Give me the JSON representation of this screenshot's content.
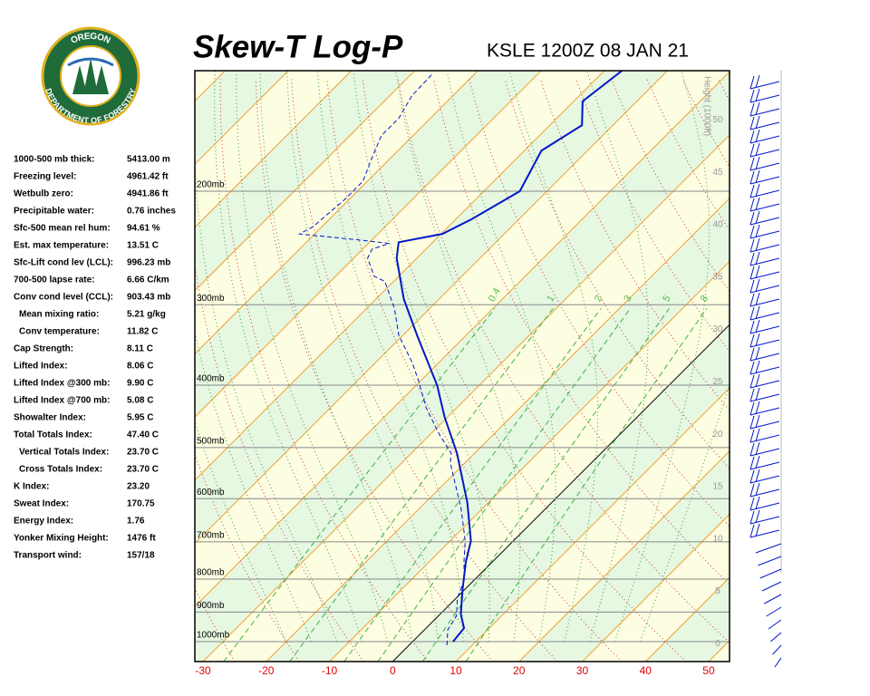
{
  "logo": {
    "top": "OREGON",
    "bottom": "DEPARTMENT OF FORESTRY"
  },
  "stats": {
    "rows": [
      [
        "1000-500 mb thick:",
        "5413.00 m"
      ],
      [
        "Freezing level:",
        "4961.42 ft"
      ],
      [
        "Wetbulb zero:",
        "4941.86 ft"
      ],
      [
        "Precipitable water:",
        "0.76 inches"
      ],
      [
        "Sfc-500 mean rel hum:",
        "94.61 %"
      ],
      [
        "Est. max temperature:",
        "13.51 C"
      ],
      [
        "Sfc-Lift cond lev (LCL):",
        "996.23 mb"
      ],
      [
        "700-500 lapse rate:",
        "6.66 C/km"
      ],
      [
        "Conv cond level (CCL):",
        "903.43 mb"
      ],
      [
        "Mean mixing ratio:",
        "5.21 g/kg"
      ],
      [
        "Conv temperature:",
        "11.82 C"
      ],
      [
        "Cap Strength:",
        "8.11 C"
      ],
      [
        "Lifted Index:",
        "8.06 C"
      ],
      [
        "Lifted Index @300 mb:",
        "9.90 C"
      ],
      [
        "Lifted Index @700 mb:",
        "5.08 C"
      ],
      [
        "Showalter Index:",
        "5.95 C"
      ],
      [
        "Total Totals Index:",
        "47.40 C"
      ],
      [
        "Vertical Totals Index:",
        "23.70 C"
      ],
      [
        "Cross Totals Index:",
        "23.70 C"
      ],
      [
        "K Index:",
        "23.20"
      ],
      [
        "Sweat Index:",
        "170.75"
      ],
      [
        "Energy Index:",
        "1.76"
      ],
      [
        "Yonker Mixing Height:",
        "1476 ft"
      ],
      [
        "Transport wind:",
        "157/18"
      ]
    ]
  },
  "chart_data": {
    "type": "skewt",
    "title": "Skew-T Log-P",
    "subtitle": "KSLE 1200Z 08 JAN 21",
    "xlim": [
      -31.3,
      53.3
    ],
    "xticks": [
      -30,
      -20,
      -10,
      0,
      10,
      20,
      30,
      40,
      50
    ],
    "ylim": [
      1074,
      130
    ],
    "ylog": true,
    "yticks": [
      {
        "value": 1000,
        "label": "1000mb"
      },
      {
        "value": 900,
        "label": "900mb"
      },
      {
        "value": 800,
        "label": "800mb"
      },
      {
        "value": 700,
        "label": "700mb"
      },
      {
        "value": 600,
        "label": "600mb"
      },
      {
        "value": 500,
        "label": "500mb"
      },
      {
        "value": 400,
        "label": "400mb"
      },
      {
        "value": 300,
        "label": "300mb"
      },
      {
        "value": 200,
        "label": "200mb"
      }
    ],
    "y2lim": [
      -1.7,
      54.7
    ],
    "y2ticks": [
      0,
      5,
      10,
      15,
      20,
      25,
      30,
      35,
      40,
      45,
      50
    ],
    "y2label": "Height (1000ft)",
    "mixing_ratios": [
      {
        "value": 0.4,
        "label": "0.4"
      },
      1,
      2,
      3,
      5,
      8
    ],
    "series": [
      {
        "color": "#0018c8",
        "style": "solid",
        "pressure": [
          1000,
          953,
          907,
          829,
          752,
          698,
          609,
          510,
          448,
          400,
          335,
          294,
          254,
          240,
          233,
          221,
          200,
          173,
          158,
          145,
          130
        ],
        "values": [
          6.4,
          6.0,
          3.3,
          -0.4,
          -4.2,
          -6.7,
          -13.3,
          -22.8,
          -30.5,
          -36.7,
          -47.7,
          -55.6,
          -63.2,
          -65.4,
          -59.8,
          -57.5,
          -54.3,
          -57.3,
          -54.9,
          -58.6,
          -57.2
        ]
      },
      {
        "color": "#0018c8",
        "style": "dashed",
        "pressure": [
          1013,
          959,
          913,
          856,
          802,
          752,
          698,
          619,
          553,
          527,
          510,
          478,
          434,
          394,
          369,
          335,
          304,
          276,
          271,
          254,
          246,
          241,
          238,
          233,
          227,
          206,
          193,
          178,
          164,
          154,
          142,
          131
        ],
        "values": [
          6.0,
          3.7,
          2.9,
          0.2,
          -1.6,
          -4.5,
          -7.6,
          -13.6,
          -19.8,
          -22.4,
          -23.7,
          -28.4,
          -34.8,
          -40.3,
          -44.2,
          -50.6,
          -55.6,
          -61.4,
          -63.9,
          -67.8,
          -68.5,
          -66.7,
          -72.1,
          -82.4,
          -81.4,
          -80.7,
          -80.7,
          -82.9,
          -85.0,
          -85.0,
          -86.5,
          -86.7
        ]
      }
    ]
  }
}
